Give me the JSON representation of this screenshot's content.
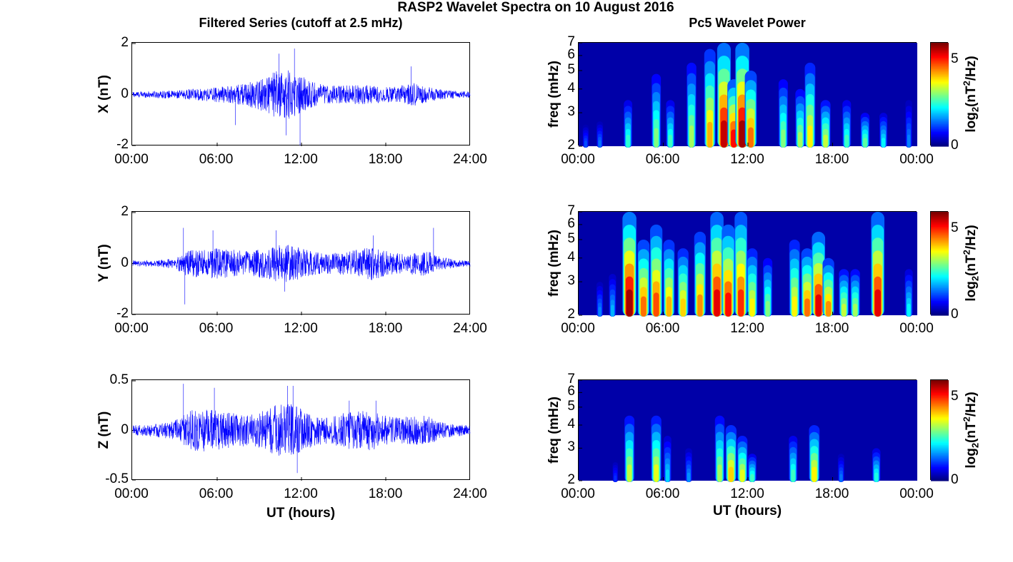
{
  "title": "RASP2 Wavelet Spectra on 10 August 2016",
  "left_title": "Filtered Series (cutoff at 2.5 mHz)",
  "right_title": "Pc5 Wavelet Power",
  "x_ticks_left": [
    "00:00",
    "06:00",
    "12:00",
    "18:00",
    "24:00"
  ],
  "x_ticks_right": [
    "00:00",
    "06:00",
    "12:00",
    "18:00",
    "00:00"
  ],
  "xlabel": "UT (hours)",
  "freq_label": "freq (mHz)",
  "freq_ticks": [
    "2",
    "3",
    "4",
    "5",
    "6",
    "7"
  ],
  "colorbar_label": "log2(nT2/Hz)",
  "colorbar_ticks": [
    "0",
    "5"
  ],
  "colors": {
    "trace": "#0000ff",
    "wavelet_bg": "#00008f"
  },
  "chart_data": [
    {
      "type": "line",
      "component": "X",
      "ylabel": "X (nT)",
      "y_ticks": [
        "2",
        "0",
        "-2"
      ],
      "ylim": [
        -2,
        2
      ],
      "xlim_hours": [
        0,
        24
      ],
      "envelope": {
        "hours": [
          0,
          1,
          2,
          3,
          4,
          5,
          6,
          7,
          8,
          9,
          10,
          11,
          12,
          13,
          14,
          15,
          16,
          17,
          18,
          19,
          20,
          21,
          22,
          23,
          24
        ],
        "amplitude": [
          0.12,
          0.12,
          0.15,
          0.15,
          0.2,
          0.25,
          0.3,
          0.35,
          0.45,
          0.6,
          0.9,
          1.0,
          0.75,
          0.45,
          0.35,
          0.35,
          0.4,
          0.35,
          0.3,
          0.35,
          0.45,
          0.3,
          0.2,
          0.15,
          0.12
        ]
      },
      "spikes": [
        {
          "hour": 7.3,
          "value": -1.2
        },
        {
          "hour": 10.4,
          "value": 1.6
        },
        {
          "hour": 10.9,
          "value": -1.6
        },
        {
          "hour": 11.5,
          "value": 1.8
        },
        {
          "hour": 11.9,
          "value": -2.0
        },
        {
          "hour": 19.8,
          "value": 1.1
        }
      ]
    },
    {
      "type": "line",
      "component": "Y",
      "ylabel": "Y (nT)",
      "y_ticks": [
        "2",
        "0",
        "-2"
      ],
      "ylim": [
        -2,
        2
      ],
      "xlim_hours": [
        0,
        24
      ],
      "envelope": {
        "hours": [
          0,
          1,
          2,
          3,
          4,
          5,
          6,
          7,
          8,
          9,
          10,
          11,
          12,
          13,
          14,
          15,
          16,
          17,
          18,
          19,
          20,
          21,
          22,
          23,
          24
        ],
        "amplitude": [
          0.12,
          0.12,
          0.15,
          0.2,
          0.55,
          0.55,
          0.6,
          0.55,
          0.5,
          0.55,
          0.7,
          0.75,
          0.6,
          0.45,
          0.4,
          0.45,
          0.55,
          0.65,
          0.5,
          0.4,
          0.45,
          0.5,
          0.25,
          0.15,
          0.12
        ]
      },
      "spikes": [
        {
          "hour": 3.6,
          "value": 1.4
        },
        {
          "hour": 3.7,
          "value": -1.6
        },
        {
          "hour": 5.7,
          "value": 1.3
        },
        {
          "hour": 10.2,
          "value": 1.3
        },
        {
          "hour": 10.8,
          "value": -1.1
        },
        {
          "hour": 17.1,
          "value": 1.1
        },
        {
          "hour": 21.4,
          "value": 1.4
        }
      ]
    },
    {
      "type": "line",
      "component": "Z",
      "ylabel": "Z (nT)",
      "y_ticks": [
        "0.5",
        "0",
        "-0.5"
      ],
      "ylim": [
        -0.5,
        0.5
      ],
      "xlim_hours": [
        0,
        24
      ],
      "envelope": {
        "hours": [
          0,
          1,
          2,
          3,
          4,
          5,
          6,
          7,
          8,
          9,
          10,
          11,
          12,
          13,
          14,
          15,
          16,
          17,
          18,
          19,
          20,
          21,
          22,
          23,
          24
        ],
        "amplitude": [
          0.05,
          0.06,
          0.07,
          0.1,
          0.2,
          0.22,
          0.2,
          0.18,
          0.16,
          0.18,
          0.25,
          0.28,
          0.22,
          0.15,
          0.13,
          0.18,
          0.2,
          0.2,
          0.15,
          0.13,
          0.15,
          0.15,
          0.08,
          0.06,
          0.05
        ]
      },
      "spikes": [
        {
          "hour": 3.6,
          "value": 0.47
        },
        {
          "hour": 5.8,
          "value": 0.43
        },
        {
          "hour": 11.0,
          "value": 0.45
        },
        {
          "hour": 11.4,
          "value": 0.45
        },
        {
          "hour": 11.7,
          "value": -0.43
        },
        {
          "hour": 15.4,
          "value": 0.3
        },
        {
          "hour": 17.3,
          "value": 0.3
        }
      ]
    },
    {
      "type": "heatmap",
      "component": "X",
      "ylabel": "freq (mHz)",
      "ylim": [
        2,
        7
      ],
      "y_scale": "log",
      "clim": [
        0,
        6
      ],
      "bursts": [
        {
          "hour": 0.5,
          "f_low": 2,
          "f_high": 2.6,
          "power": 1.2
        },
        {
          "hour": 1.5,
          "f_low": 2,
          "f_high": 2.7,
          "power": 1.4
        },
        {
          "hour": 3.5,
          "f_low": 2,
          "f_high": 3.5,
          "power": 2.5
        },
        {
          "hour": 5.5,
          "f_low": 2,
          "f_high": 4.8,
          "power": 3.0
        },
        {
          "hour": 6.5,
          "f_low": 2,
          "f_high": 3.5,
          "power": 2.6
        },
        {
          "hour": 8.0,
          "f_low": 2,
          "f_high": 5.5,
          "power": 3.2
        },
        {
          "hour": 9.3,
          "f_low": 2,
          "f_high": 6.5,
          "power": 4.2
        },
        {
          "hour": 10.3,
          "f_low": 2,
          "f_high": 7,
          "power": 5.6
        },
        {
          "hour": 11.0,
          "f_low": 2,
          "f_high": 4.5,
          "power": 5.2
        },
        {
          "hour": 11.6,
          "f_low": 2,
          "f_high": 7,
          "power": 5.8
        },
        {
          "hour": 12.2,
          "f_low": 2,
          "f_high": 5,
          "power": 4.6
        },
        {
          "hour": 14.5,
          "f_low": 2,
          "f_high": 4.5,
          "power": 3.0
        },
        {
          "hour": 15.7,
          "f_low": 2,
          "f_high": 4,
          "power": 3.2
        },
        {
          "hour": 16.4,
          "f_low": 2,
          "f_high": 5.5,
          "power": 3.8
        },
        {
          "hour": 17.5,
          "f_low": 2,
          "f_high": 3.5,
          "power": 3.4
        },
        {
          "hour": 19.0,
          "f_low": 2,
          "f_high": 3.5,
          "power": 2.6
        },
        {
          "hour": 20.3,
          "f_low": 2,
          "f_high": 3,
          "power": 2.8
        },
        {
          "hour": 21.6,
          "f_low": 2,
          "f_high": 3,
          "power": 2.2
        },
        {
          "hour": 23.4,
          "f_low": 2,
          "f_high": 3.5,
          "power": 1.5
        }
      ]
    },
    {
      "type": "heatmap",
      "component": "Y",
      "ylabel": "freq (mHz)",
      "ylim": [
        2,
        7
      ],
      "y_scale": "log",
      "clim": [
        0,
        6
      ],
      "bursts": [
        {
          "hour": 1.5,
          "f_low": 2,
          "f_high": 3,
          "power": 1.5
        },
        {
          "hour": 2.4,
          "f_low": 2,
          "f_high": 3.3,
          "power": 1.8
        },
        {
          "hour": 3.6,
          "f_low": 2,
          "f_high": 7,
          "power": 5.8
        },
        {
          "hour": 4.6,
          "f_low": 2,
          "f_high": 5,
          "power": 4.6
        },
        {
          "hour": 5.5,
          "f_low": 2,
          "f_high": 6,
          "power": 4.8
        },
        {
          "hour": 6.4,
          "f_low": 2,
          "f_high": 5,
          "power": 4.2
        },
        {
          "hour": 7.4,
          "f_low": 2,
          "f_high": 4.5,
          "power": 4.0
        },
        {
          "hour": 8.6,
          "f_low": 2,
          "f_high": 5.5,
          "power": 4.4
        },
        {
          "hour": 9.8,
          "f_low": 2,
          "f_high": 7,
          "power": 5.4
        },
        {
          "hour": 10.6,
          "f_low": 2,
          "f_high": 6,
          "power": 5.2
        },
        {
          "hour": 11.5,
          "f_low": 2,
          "f_high": 7,
          "power": 5.0
        },
        {
          "hour": 12.3,
          "f_low": 2,
          "f_high": 4.5,
          "power": 3.8
        },
        {
          "hour": 13.4,
          "f_low": 2,
          "f_high": 4,
          "power": 3.0
        },
        {
          "hour": 15.3,
          "f_low": 2,
          "f_high": 5,
          "power": 3.8
        },
        {
          "hour": 16.2,
          "f_low": 2,
          "f_high": 4.5,
          "power": 4.6
        },
        {
          "hour": 17.0,
          "f_low": 2,
          "f_high": 5.5,
          "power": 5.4
        },
        {
          "hour": 17.7,
          "f_low": 2,
          "f_high": 4,
          "power": 4.4
        },
        {
          "hour": 18.8,
          "f_low": 2,
          "f_high": 3.5,
          "power": 3.4
        },
        {
          "hour": 19.6,
          "f_low": 2,
          "f_high": 3.5,
          "power": 3.2
        },
        {
          "hour": 21.2,
          "f_low": 2,
          "f_high": 7,
          "power": 5.4
        },
        {
          "hour": 23.4,
          "f_low": 2,
          "f_high": 3.5,
          "power": 2.2
        }
      ]
    },
    {
      "type": "heatmap",
      "component": "Z",
      "ylabel": "freq (mHz)",
      "ylim": [
        2,
        7
      ],
      "y_scale": "log",
      "clim": [
        0,
        6
      ],
      "bursts": [
        {
          "hour": 2.6,
          "f_low": 2,
          "f_high": 2.6,
          "power": 1.0
        },
        {
          "hour": 3.6,
          "f_low": 2,
          "f_high": 4.5,
          "power": 3.4
        },
        {
          "hour": 5.5,
          "f_low": 2,
          "f_high": 4.5,
          "power": 3.6
        },
        {
          "hour": 6.3,
          "f_low": 2,
          "f_high": 3.5,
          "power": 2.0
        },
        {
          "hour": 7.8,
          "f_low": 2,
          "f_high": 3,
          "power": 1.6
        },
        {
          "hour": 10.0,
          "f_low": 2,
          "f_high": 4.5,
          "power": 3.2
        },
        {
          "hour": 10.8,
          "f_low": 2,
          "f_high": 4,
          "power": 4.0
        },
        {
          "hour": 11.6,
          "f_low": 2,
          "f_high": 3.5,
          "power": 3.6
        },
        {
          "hour": 12.3,
          "f_low": 2,
          "f_high": 2.8,
          "power": 2.6
        },
        {
          "hour": 15.2,
          "f_low": 2,
          "f_high": 3.5,
          "power": 2.6
        },
        {
          "hour": 16.7,
          "f_low": 2,
          "f_high": 4,
          "power": 3.8
        },
        {
          "hour": 18.6,
          "f_low": 2,
          "f_high": 2.8,
          "power": 1.4
        },
        {
          "hour": 21.1,
          "f_low": 2,
          "f_high": 3,
          "power": 2.4
        }
      ]
    }
  ]
}
